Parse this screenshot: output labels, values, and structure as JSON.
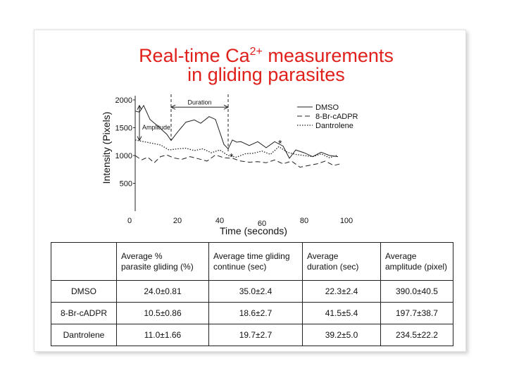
{
  "title": {
    "line1_pre": "Real-time Ca",
    "line1_sup": "2+",
    "line1_post": " measurements",
    "line2": "in gliding parasites"
  },
  "chart_data": {
    "type": "line",
    "xlabel": "Time (seconds)",
    "ylabel": "Intensity (Pixels)",
    "xlim": [
      0,
      100
    ],
    "ylim": [
      0,
      2000
    ],
    "xticks": [
      0,
      20,
      40,
      60,
      80,
      100
    ],
    "yticks": [
      500,
      1000,
      1500,
      2000
    ],
    "grid": false,
    "legend_position": "top-right",
    "series": [
      {
        "name": "DMSO",
        "style": "solid",
        "x": [
          0,
          2,
          4,
          7,
          11,
          15,
          17,
          20,
          24,
          28,
          31,
          35,
          38,
          42,
          44,
          46,
          48,
          50,
          54,
          58,
          62,
          66,
          70,
          73,
          76,
          80,
          84,
          88,
          92,
          96
        ],
        "y": [
          1800,
          1780,
          1900,
          1650,
          1520,
          1380,
          1270,
          1420,
          1600,
          1640,
          1580,
          1700,
          1650,
          1200,
          1120,
          1280,
          1240,
          1250,
          1180,
          1250,
          1140,
          1250,
          1170,
          950,
          1100,
          1050,
          980,
          1060,
          1000,
          980
        ]
      },
      {
        "name": "8-Br-cADPR",
        "style": "dashed",
        "x": [
          0,
          3,
          6,
          9,
          12,
          15,
          18,
          22,
          26,
          30,
          34,
          38,
          42,
          46,
          50,
          54,
          58,
          62,
          66,
          70,
          74,
          78,
          82,
          86,
          90,
          94,
          98
        ],
        "y": [
          1000,
          920,
          970,
          870,
          980,
          1010,
          960,
          930,
          980,
          940,
          900,
          1010,
          960,
          950,
          900,
          880,
          890,
          870,
          920,
          850,
          900,
          790,
          820,
          850,
          900,
          820,
          860
        ]
      },
      {
        "name": "Dantrolene",
        "style": "dotted",
        "x": [
          0,
          4,
          8,
          12,
          16,
          20,
          24,
          28,
          32,
          36,
          40,
          44,
          48,
          52,
          56,
          60,
          64,
          68,
          72,
          76,
          80,
          84,
          88,
          92,
          96
        ],
        "y": [
          1280,
          1250,
          1220,
          1190,
          1100,
          1120,
          1130,
          1090,
          1120,
          1050,
          1100,
          1000,
          970,
          1030,
          1040,
          1080,
          1020,
          1160,
          1060,
          1020,
          1000,
          980,
          1030,
          960,
          1010
        ]
      }
    ],
    "annotations": [
      {
        "label": "Amplitude",
        "x": 4,
        "y_from": 1900,
        "y_to": 1270
      },
      {
        "label": "Duration",
        "x_from": 17,
        "x_to": 44,
        "y": 1870
      },
      {
        "label": "*",
        "x": 46,
        "y": 1020
      },
      {
        "label": "*",
        "x": 69,
        "y": 1260
      }
    ]
  },
  "table": {
    "headers": [
      "",
      "Average %\nparasite gliding (%)",
      "Average time gliding\ncontinue (sec)",
      "Average\nduration (sec)",
      "Average\namplitude (pixel)"
    ],
    "rows": [
      [
        "DMSO",
        "24.0±0.81",
        "35.0±2.4",
        "22.3±2.4",
        "390.0±40.5"
      ],
      [
        "8-Br-cADPR",
        "10.5±0.86",
        "18.6±2.7",
        "41.5±5.4",
        "197.7±38.7"
      ],
      [
        "Dantrolene",
        "11.0±1.66",
        "19.7±2.7",
        "39.2±5.0",
        "234.5±22.2"
      ]
    ]
  }
}
